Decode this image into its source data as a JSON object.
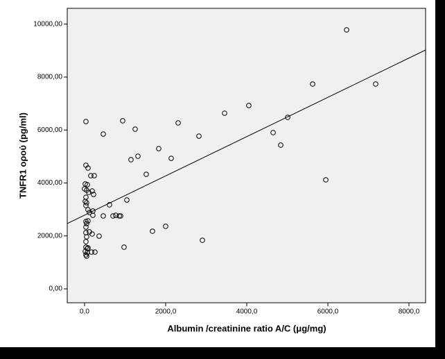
{
  "chart_data": {
    "type": "scatter",
    "x_label": "Albumin /creatinine ratio A/C (μg/mg)",
    "y_label": "TNFR1 ορού (pg/ml)",
    "xlim": [
      -427,
      8410
    ],
    "ylim": [
      -525,
      10597
    ],
    "xticks": [
      {
        "value": 0,
        "label": "0,0"
      },
      {
        "value": 2000,
        "label": "2000,0"
      },
      {
        "value": 4000,
        "label": "4000,0"
      },
      {
        "value": 6000,
        "label": "6000,0"
      },
      {
        "value": 8000,
        "label": "8000,0"
      }
    ],
    "yticks": [
      {
        "value": 0,
        "label": "0,00"
      },
      {
        "value": 2000,
        "label": "2000,00"
      },
      {
        "value": 4000,
        "label": "4000,00"
      },
      {
        "value": 6000,
        "label": "6000,00"
      },
      {
        "value": 8000,
        "label": "8000,00"
      },
      {
        "value": 10000,
        "label": "10000,00"
      }
    ],
    "marker_color": "#000000",
    "background": "#f0f0f0",
    "x": [
      34,
      462,
      940,
      1248,
      2308,
      1829,
      1316,
      1145,
      2137,
      2821,
      3453,
      4051,
      6462,
      5624,
      7179,
      5009,
      4650,
      4838,
      5949,
      1521,
      34,
      85,
      154,
      239,
      17,
      68,
      0,
      51,
      103,
      188,
      222,
      34,
      17,
      51,
      34,
      615,
      1043,
      85,
      120,
      205,
      205,
      462,
      701,
      769,
      855,
      889,
      34,
      85,
      51,
      34,
      34,
      120,
      188,
      359,
      51,
      34,
      1675,
      2000,
      2906,
      974,
      34,
      68,
      17,
      85,
      68,
      171,
      256,
      51,
      34
    ],
    "y": [
      6321,
      5849,
      6348,
      6033,
      6269,
      5298,
      5010,
      4879,
      4931,
      5770,
      6636,
      6925,
      9784,
      7738,
      7738,
      6479,
      5902,
      5430,
      4118,
      4328,
      4669,
      4564,
      4275,
      4275,
      3961,
      3934,
      3777,
      3725,
      3646,
      3698,
      3567,
      3462,
      3305,
      3252,
      3148,
      3174,
      3357,
      2990,
      2885,
      2938,
      2780,
      2754,
      2754,
      2780,
      2754,
      2754,
      2544,
      2570,
      2466,
      2334,
      2125,
      2151,
      2072,
      1993,
      1967,
      1784,
      2177,
      2361,
      1836,
      1574,
      1574,
      1521,
      1416,
      1548,
      1364,
      1390,
      1390,
      1233,
      1285
    ],
    "fit_line": {
      "x": [
        -427,
        8410
      ],
      "y": [
        2466,
        9023
      ]
    }
  }
}
